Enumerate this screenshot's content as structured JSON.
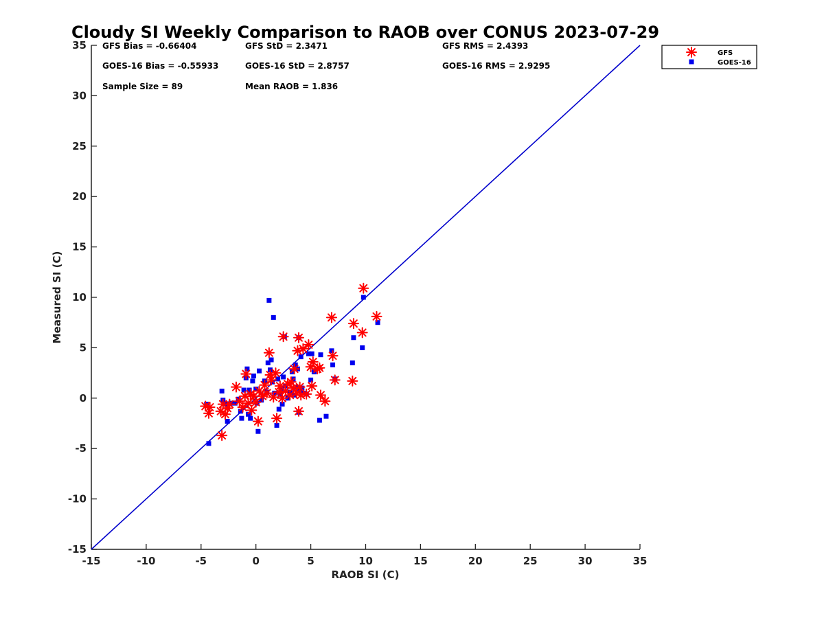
{
  "chart_data": {
    "type": "scatter",
    "title": "Cloudy SI Weekly Comparison to RAOB over CONUS 2023-07-29",
    "xlabel": "RAOB SI (C)",
    "ylabel": "Measured SI (C)",
    "xlim": [
      -15,
      35
    ],
    "ylim": [
      -15,
      35
    ],
    "x_ticks": [
      "-15",
      "-10",
      "-5",
      "0",
      "5",
      "10",
      "15",
      "20",
      "25",
      "30",
      "35"
    ],
    "y_ticks": [
      "-15",
      "-10",
      "-5",
      "0",
      "5",
      "10",
      "15",
      "20",
      "25",
      "30",
      "35"
    ],
    "grid": false,
    "legend_position": "top-right outside",
    "reference_line": {
      "x": [
        -15,
        35
      ],
      "y": [
        -15,
        35
      ],
      "color": "#0000cc"
    },
    "stats": [
      [
        "GFS Bias = -0.66404",
        "GFS StD = 2.3471",
        "GFS RMS = 2.4393"
      ],
      [
        "GOES-16 Bias = -0.55933",
        "GOES-16 StD = 2.8757",
        "GOES-16 RMS = 2.9295"
      ],
      [
        "Sample Size = 89",
        "Mean RAOB = 1.836",
        ""
      ]
    ],
    "series": [
      {
        "name": "GFS",
        "marker": "asterisk",
        "color": "#ff0000",
        "points": [
          [
            -4.6,
            -0.8
          ],
          [
            -4.3,
            -1.5
          ],
          [
            -4.2,
            -0.9
          ],
          [
            -3.2,
            -1.3
          ],
          [
            -3.0,
            -0.6
          ],
          [
            -2.8,
            -1.6
          ],
          [
            -2.6,
            -1.0
          ],
          [
            -2.4,
            -0.6
          ],
          [
            -3.1,
            -3.7
          ],
          [
            -1.8,
            1.1
          ],
          [
            -1.5,
            -0.3
          ],
          [
            -1.2,
            -0.9
          ],
          [
            -1.0,
            0.2
          ],
          [
            -0.9,
            2.4
          ],
          [
            -0.7,
            -0.5
          ],
          [
            -0.5,
            0.4
          ],
          [
            -0.4,
            -1.2
          ],
          [
            -0.2,
            0.2
          ],
          [
            0.0,
            -0.4
          ],
          [
            0.2,
            -2.3
          ],
          [
            0.3,
            0.7
          ],
          [
            0.6,
            0.2
          ],
          [
            0.8,
            1.3
          ],
          [
            1.0,
            0.5
          ],
          [
            1.2,
            4.5
          ],
          [
            1.3,
            2.3
          ],
          [
            1.4,
            1.8
          ],
          [
            1.6,
            0.1
          ],
          [
            1.8,
            2.5
          ],
          [
            1.9,
            -2.0
          ],
          [
            2.1,
            0.6
          ],
          [
            2.2,
            1.2
          ],
          [
            2.4,
            0.0
          ],
          [
            2.5,
            6.1
          ],
          [
            2.7,
            0.7
          ],
          [
            2.9,
            1.4
          ],
          [
            3.1,
            0.3
          ],
          [
            3.2,
            1.6
          ],
          [
            3.4,
            1.0
          ],
          [
            3.5,
            2.9
          ],
          [
            3.7,
            0.5
          ],
          [
            3.8,
            4.7
          ],
          [
            3.9,
            6.0
          ],
          [
            3.9,
            -1.3
          ],
          [
            4.0,
            1.1
          ],
          [
            4.1,
            0.3
          ],
          [
            4.3,
            4.9
          ],
          [
            4.6,
            0.4
          ],
          [
            4.8,
            5.3
          ],
          [
            5.0,
            3.1
          ],
          [
            5.1,
            1.2
          ],
          [
            5.2,
            3.6
          ],
          [
            5.6,
            2.9
          ],
          [
            5.8,
            3.0
          ],
          [
            5.9,
            0.3
          ],
          [
            6.3,
            -0.3
          ],
          [
            6.9,
            8.0
          ],
          [
            7.0,
            4.2
          ],
          [
            7.2,
            1.8
          ],
          [
            8.8,
            1.7
          ],
          [
            8.9,
            7.4
          ],
          [
            9.7,
            6.5
          ],
          [
            9.8,
            10.9
          ],
          [
            11.0,
            8.1
          ]
        ]
      },
      {
        "name": "GOES-16",
        "marker": "square",
        "color": "#0000ee",
        "points": [
          [
            -4.5,
            -0.6
          ],
          [
            -4.3,
            -4.5
          ],
          [
            -3.1,
            0.7
          ],
          [
            -3.0,
            -0.2
          ],
          [
            -2.8,
            -0.6
          ],
          [
            -2.6,
            -2.3
          ],
          [
            -2.3,
            -0.5
          ],
          [
            -1.9,
            -0.5
          ],
          [
            -1.6,
            -0.1
          ],
          [
            -1.4,
            -1.3
          ],
          [
            -1.3,
            -2.0
          ],
          [
            -1.1,
            0.8
          ],
          [
            -0.9,
            2.0
          ],
          [
            -0.8,
            2.9
          ],
          [
            -0.7,
            -1.6
          ],
          [
            -0.6,
            0.8
          ],
          [
            -0.5,
            -2.0
          ],
          [
            -0.3,
            1.7
          ],
          [
            -0.2,
            2.2
          ],
          [
            0.0,
            0.9
          ],
          [
            0.1,
            -0.5
          ],
          [
            0.2,
            -3.3
          ],
          [
            0.3,
            2.7
          ],
          [
            0.5,
            -0.2
          ],
          [
            0.8,
            1.7
          ],
          [
            1.0,
            0.6
          ],
          [
            1.1,
            3.5
          ],
          [
            1.2,
            9.7
          ],
          [
            1.3,
            2.8
          ],
          [
            1.4,
            3.8
          ],
          [
            1.5,
            1.6
          ],
          [
            1.6,
            8.0
          ],
          [
            1.7,
            0.5
          ],
          [
            1.9,
            -2.7
          ],
          [
            2.0,
            1.9
          ],
          [
            2.1,
            -1.1
          ],
          [
            2.2,
            0.4
          ],
          [
            2.3,
            1.0
          ],
          [
            2.4,
            -0.6
          ],
          [
            2.5,
            2.1
          ],
          [
            2.6,
            6.1
          ],
          [
            2.7,
            1.2
          ],
          [
            2.9,
            0.0
          ],
          [
            3.1,
            0.6
          ],
          [
            3.3,
            2.6
          ],
          [
            3.4,
            1.9
          ],
          [
            3.5,
            0.3
          ],
          [
            3.6,
            3.3
          ],
          [
            3.7,
            1.1
          ],
          [
            3.8,
            2.9
          ],
          [
            3.9,
            6.0
          ],
          [
            4.0,
            0.8
          ],
          [
            4.1,
            4.1
          ],
          [
            4.2,
            1.0
          ],
          [
            4.3,
            0.5
          ],
          [
            4.6,
            0.4
          ],
          [
            4.8,
            4.4
          ],
          [
            5.0,
            1.8
          ],
          [
            5.1,
            4.4
          ],
          [
            5.3,
            2.6
          ],
          [
            5.8,
            -2.2
          ],
          [
            5.9,
            4.3
          ],
          [
            6.4,
            -1.8
          ],
          [
            6.9,
            4.7
          ],
          [
            7.0,
            3.3
          ],
          [
            7.2,
            1.9
          ],
          [
            8.8,
            3.5
          ],
          [
            8.9,
            6.0
          ],
          [
            9.7,
            5.0
          ],
          [
            9.8,
            10.0
          ],
          [
            11.1,
            7.5
          ],
          [
            3.9,
            -1.4
          ]
        ]
      }
    ]
  }
}
